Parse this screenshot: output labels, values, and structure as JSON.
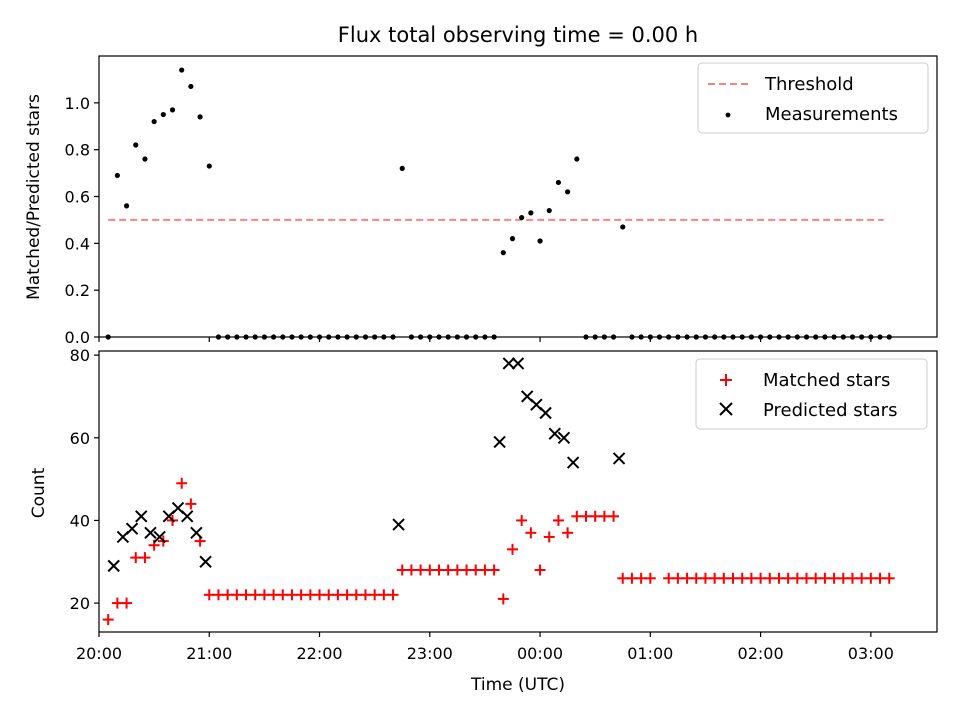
{
  "chart_data": [
    {
      "type": "scatter",
      "title": "Flux total observing time = 0.00 h",
      "xlabel": "",
      "ylabel": "Matched/Predicted stars",
      "xlim": [
        "20:00",
        "03:36"
      ],
      "ylim": [
        0,
        1.2
      ],
      "grid": false,
      "legend_position": "upper right",
      "yticks": [
        "0.0",
        "0.2",
        "0.4",
        "0.6",
        "0.8",
        "1.0"
      ],
      "series": [
        {
          "name": "Threshold",
          "kind": "dashed-line",
          "color": "#ff7f7f",
          "points": [
            [
              "20:05",
              0.5
            ],
            [
              "03:07",
              0.5
            ]
          ]
        },
        {
          "name": "Measurements",
          "kind": "dot",
          "color": "#000000",
          "points": [
            [
              "20:05",
              0.0
            ],
            [
              "20:10",
              0.69
            ],
            [
              "20:15",
              0.56
            ],
            [
              "20:20",
              0.82
            ],
            [
              "20:25",
              0.76
            ],
            [
              "20:30",
              0.92
            ],
            [
              "20:35",
              0.95
            ],
            [
              "20:40",
              0.97
            ],
            [
              "20:45",
              1.14
            ],
            [
              "20:50",
              1.07
            ],
            [
              "20:55",
              0.94
            ],
            [
              "21:00",
              0.73
            ],
            [
              "21:05",
              0.0
            ],
            [
              "21:10",
              0.0
            ],
            [
              "21:15",
              0.0
            ],
            [
              "21:20",
              0.0
            ],
            [
              "21:25",
              0.0
            ],
            [
              "21:30",
              0.0
            ],
            [
              "21:35",
              0.0
            ],
            [
              "21:40",
              0.0
            ],
            [
              "21:45",
              0.0
            ],
            [
              "21:50",
              0.0
            ],
            [
              "21:55",
              0.0
            ],
            [
              "22:00",
              0.0
            ],
            [
              "22:05",
              0.0
            ],
            [
              "22:10",
              0.0
            ],
            [
              "22:15",
              0.0
            ],
            [
              "22:20",
              0.0
            ],
            [
              "22:25",
              0.0
            ],
            [
              "22:30",
              0.0
            ],
            [
              "22:35",
              0.0
            ],
            [
              "22:40",
              0.0
            ],
            [
              "22:45",
              0.72
            ],
            [
              "22:50",
              0.0
            ],
            [
              "22:55",
              0.0
            ],
            [
              "23:00",
              0.0
            ],
            [
              "23:05",
              0.0
            ],
            [
              "23:10",
              0.0
            ],
            [
              "23:15",
              0.0
            ],
            [
              "23:20",
              0.0
            ],
            [
              "23:25",
              0.0
            ],
            [
              "23:30",
              0.0
            ],
            [
              "23:35",
              0.0
            ],
            [
              "23:40",
              0.36
            ],
            [
              "23:45",
              0.42
            ],
            [
              "23:50",
              0.51
            ],
            [
              "23:55",
              0.53
            ],
            [
              "00:00",
              0.41
            ],
            [
              "00:05",
              0.54
            ],
            [
              "00:10",
              0.66
            ],
            [
              "00:15",
              0.62
            ],
            [
              "00:20",
              0.76
            ],
            [
              "00:25",
              0.0
            ],
            [
              "00:30",
              0.0
            ],
            [
              "00:35",
              0.0
            ],
            [
              "00:40",
              0.0
            ],
            [
              "00:45",
              0.47
            ],
            [
              "00:50",
              0.0
            ],
            [
              "00:55",
              0.0
            ],
            [
              "01:00",
              0.0
            ],
            [
              "01:05",
              0.0
            ],
            [
              "01:10",
              0.0
            ],
            [
              "01:15",
              0.0
            ],
            [
              "01:20",
              0.0
            ],
            [
              "01:25",
              0.0
            ],
            [
              "01:30",
              0.0
            ],
            [
              "01:35",
              0.0
            ],
            [
              "01:40",
              0.0
            ],
            [
              "01:45",
              0.0
            ],
            [
              "01:50",
              0.0
            ],
            [
              "01:55",
              0.0
            ],
            [
              "02:00",
              0.0
            ],
            [
              "02:05",
              0.0
            ],
            [
              "02:10",
              0.0
            ],
            [
              "02:15",
              0.0
            ],
            [
              "02:20",
              0.0
            ],
            [
              "02:25",
              0.0
            ],
            [
              "02:30",
              0.0
            ],
            [
              "02:35",
              0.0
            ],
            [
              "02:40",
              0.0
            ],
            [
              "02:45",
              0.0
            ],
            [
              "02:50",
              0.0
            ],
            [
              "02:55",
              0.0
            ],
            [
              "03:00",
              0.0
            ],
            [
              "03:05",
              0.0
            ],
            [
              "03:10",
              0.0
            ]
          ]
        }
      ]
    },
    {
      "type": "scatter",
      "title": "",
      "xlabel": "Time (UTC)",
      "ylabel": "Count",
      "xlim": [
        "20:00",
        "03:36"
      ],
      "ylim": [
        13,
        81
      ],
      "grid": false,
      "legend_position": "upper right",
      "xticks": [
        "20:00",
        "21:00",
        "22:00",
        "23:00",
        "00:00",
        "01:00",
        "02:00",
        "03:00"
      ],
      "yticks": [
        "20",
        "40",
        "60",
        "80"
      ],
      "series": [
        {
          "name": "Matched stars",
          "kind": "plus",
          "color": "#ff0000",
          "points": [
            [
              "20:05",
              16
            ],
            [
              "20:10",
              20
            ],
            [
              "20:15",
              20
            ],
            [
              "20:20",
              31
            ],
            [
              "20:25",
              31
            ],
            [
              "20:30",
              34
            ],
            [
              "20:35",
              35
            ],
            [
              "20:40",
              40
            ],
            [
              "20:45",
              49
            ],
            [
              "20:50",
              44
            ],
            [
              "20:55",
              35
            ],
            [
              "21:00",
              22
            ],
            [
              "21:05",
              22
            ],
            [
              "21:10",
              22
            ],
            [
              "21:15",
              22
            ],
            [
              "21:20",
              22
            ],
            [
              "21:25",
              22
            ],
            [
              "21:30",
              22
            ],
            [
              "21:35",
              22
            ],
            [
              "21:40",
              22
            ],
            [
              "21:45",
              22
            ],
            [
              "21:50",
              22
            ],
            [
              "21:55",
              22
            ],
            [
              "22:00",
              22
            ],
            [
              "22:05",
              22
            ],
            [
              "22:10",
              22
            ],
            [
              "22:15",
              22
            ],
            [
              "22:20",
              22
            ],
            [
              "22:25",
              22
            ],
            [
              "22:30",
              22
            ],
            [
              "22:35",
              22
            ],
            [
              "22:40",
              22
            ],
            [
              "22:45",
              28
            ],
            [
              "22:50",
              28
            ],
            [
              "22:55",
              28
            ],
            [
              "23:00",
              28
            ],
            [
              "23:05",
              28
            ],
            [
              "23:10",
              28
            ],
            [
              "23:15",
              28
            ],
            [
              "23:20",
              28
            ],
            [
              "23:25",
              28
            ],
            [
              "23:30",
              28
            ],
            [
              "23:35",
              28
            ],
            [
              "23:40",
              21
            ],
            [
              "23:45",
              33
            ],
            [
              "23:50",
              40
            ],
            [
              "23:55",
              37
            ],
            [
              "00:00",
              28
            ],
            [
              "00:05",
              36
            ],
            [
              "00:10",
              40
            ],
            [
              "00:15",
              37
            ],
            [
              "00:20",
              41
            ],
            [
              "00:25",
              41
            ],
            [
              "00:30",
              41
            ],
            [
              "00:35",
              41
            ],
            [
              "00:40",
              41
            ],
            [
              "00:45",
              26
            ],
            [
              "00:50",
              26
            ],
            [
              "00:55",
              26
            ],
            [
              "01:00",
              26
            ],
            [
              "01:10",
              26
            ],
            [
              "01:15",
              26
            ],
            [
              "01:20",
              26
            ],
            [
              "01:25",
              26
            ],
            [
              "01:30",
              26
            ],
            [
              "01:35",
              26
            ],
            [
              "01:40",
              26
            ],
            [
              "01:45",
              26
            ],
            [
              "01:50",
              26
            ],
            [
              "01:55",
              26
            ],
            [
              "02:00",
              26
            ],
            [
              "02:05",
              26
            ],
            [
              "02:10",
              26
            ],
            [
              "02:15",
              26
            ],
            [
              "02:20",
              26
            ],
            [
              "02:25",
              26
            ],
            [
              "02:30",
              26
            ],
            [
              "02:35",
              26
            ],
            [
              "02:40",
              26
            ],
            [
              "02:45",
              26
            ],
            [
              "02:50",
              26
            ],
            [
              "02:55",
              26
            ],
            [
              "03:00",
              26
            ],
            [
              "03:05",
              26
            ],
            [
              "03:10",
              26
            ]
          ]
        },
        {
          "name": "Predicted stars",
          "kind": "x",
          "color": "#000000",
          "points": [
            [
              "20:08",
              29
            ],
            [
              "20:13",
              36
            ],
            [
              "20:18",
              38
            ],
            [
              "20:23",
              41
            ],
            [
              "20:28",
              37
            ],
            [
              "20:33",
              36
            ],
            [
              "20:38",
              41
            ],
            [
              "20:43",
              43
            ],
            [
              "20:48",
              41
            ],
            [
              "20:53",
              37
            ],
            [
              "20:58",
              30
            ],
            [
              "22:43",
              39
            ],
            [
              "23:38",
              59
            ],
            [
              "23:43",
              78
            ],
            [
              "23:48",
              78
            ],
            [
              "23:53",
              70
            ],
            [
              "23:58",
              68
            ],
            [
              "00:03",
              66
            ],
            [
              "00:08",
              61
            ],
            [
              "00:13",
              60
            ],
            [
              "00:18",
              54
            ],
            [
              "00:43",
              55
            ]
          ]
        }
      ]
    }
  ]
}
